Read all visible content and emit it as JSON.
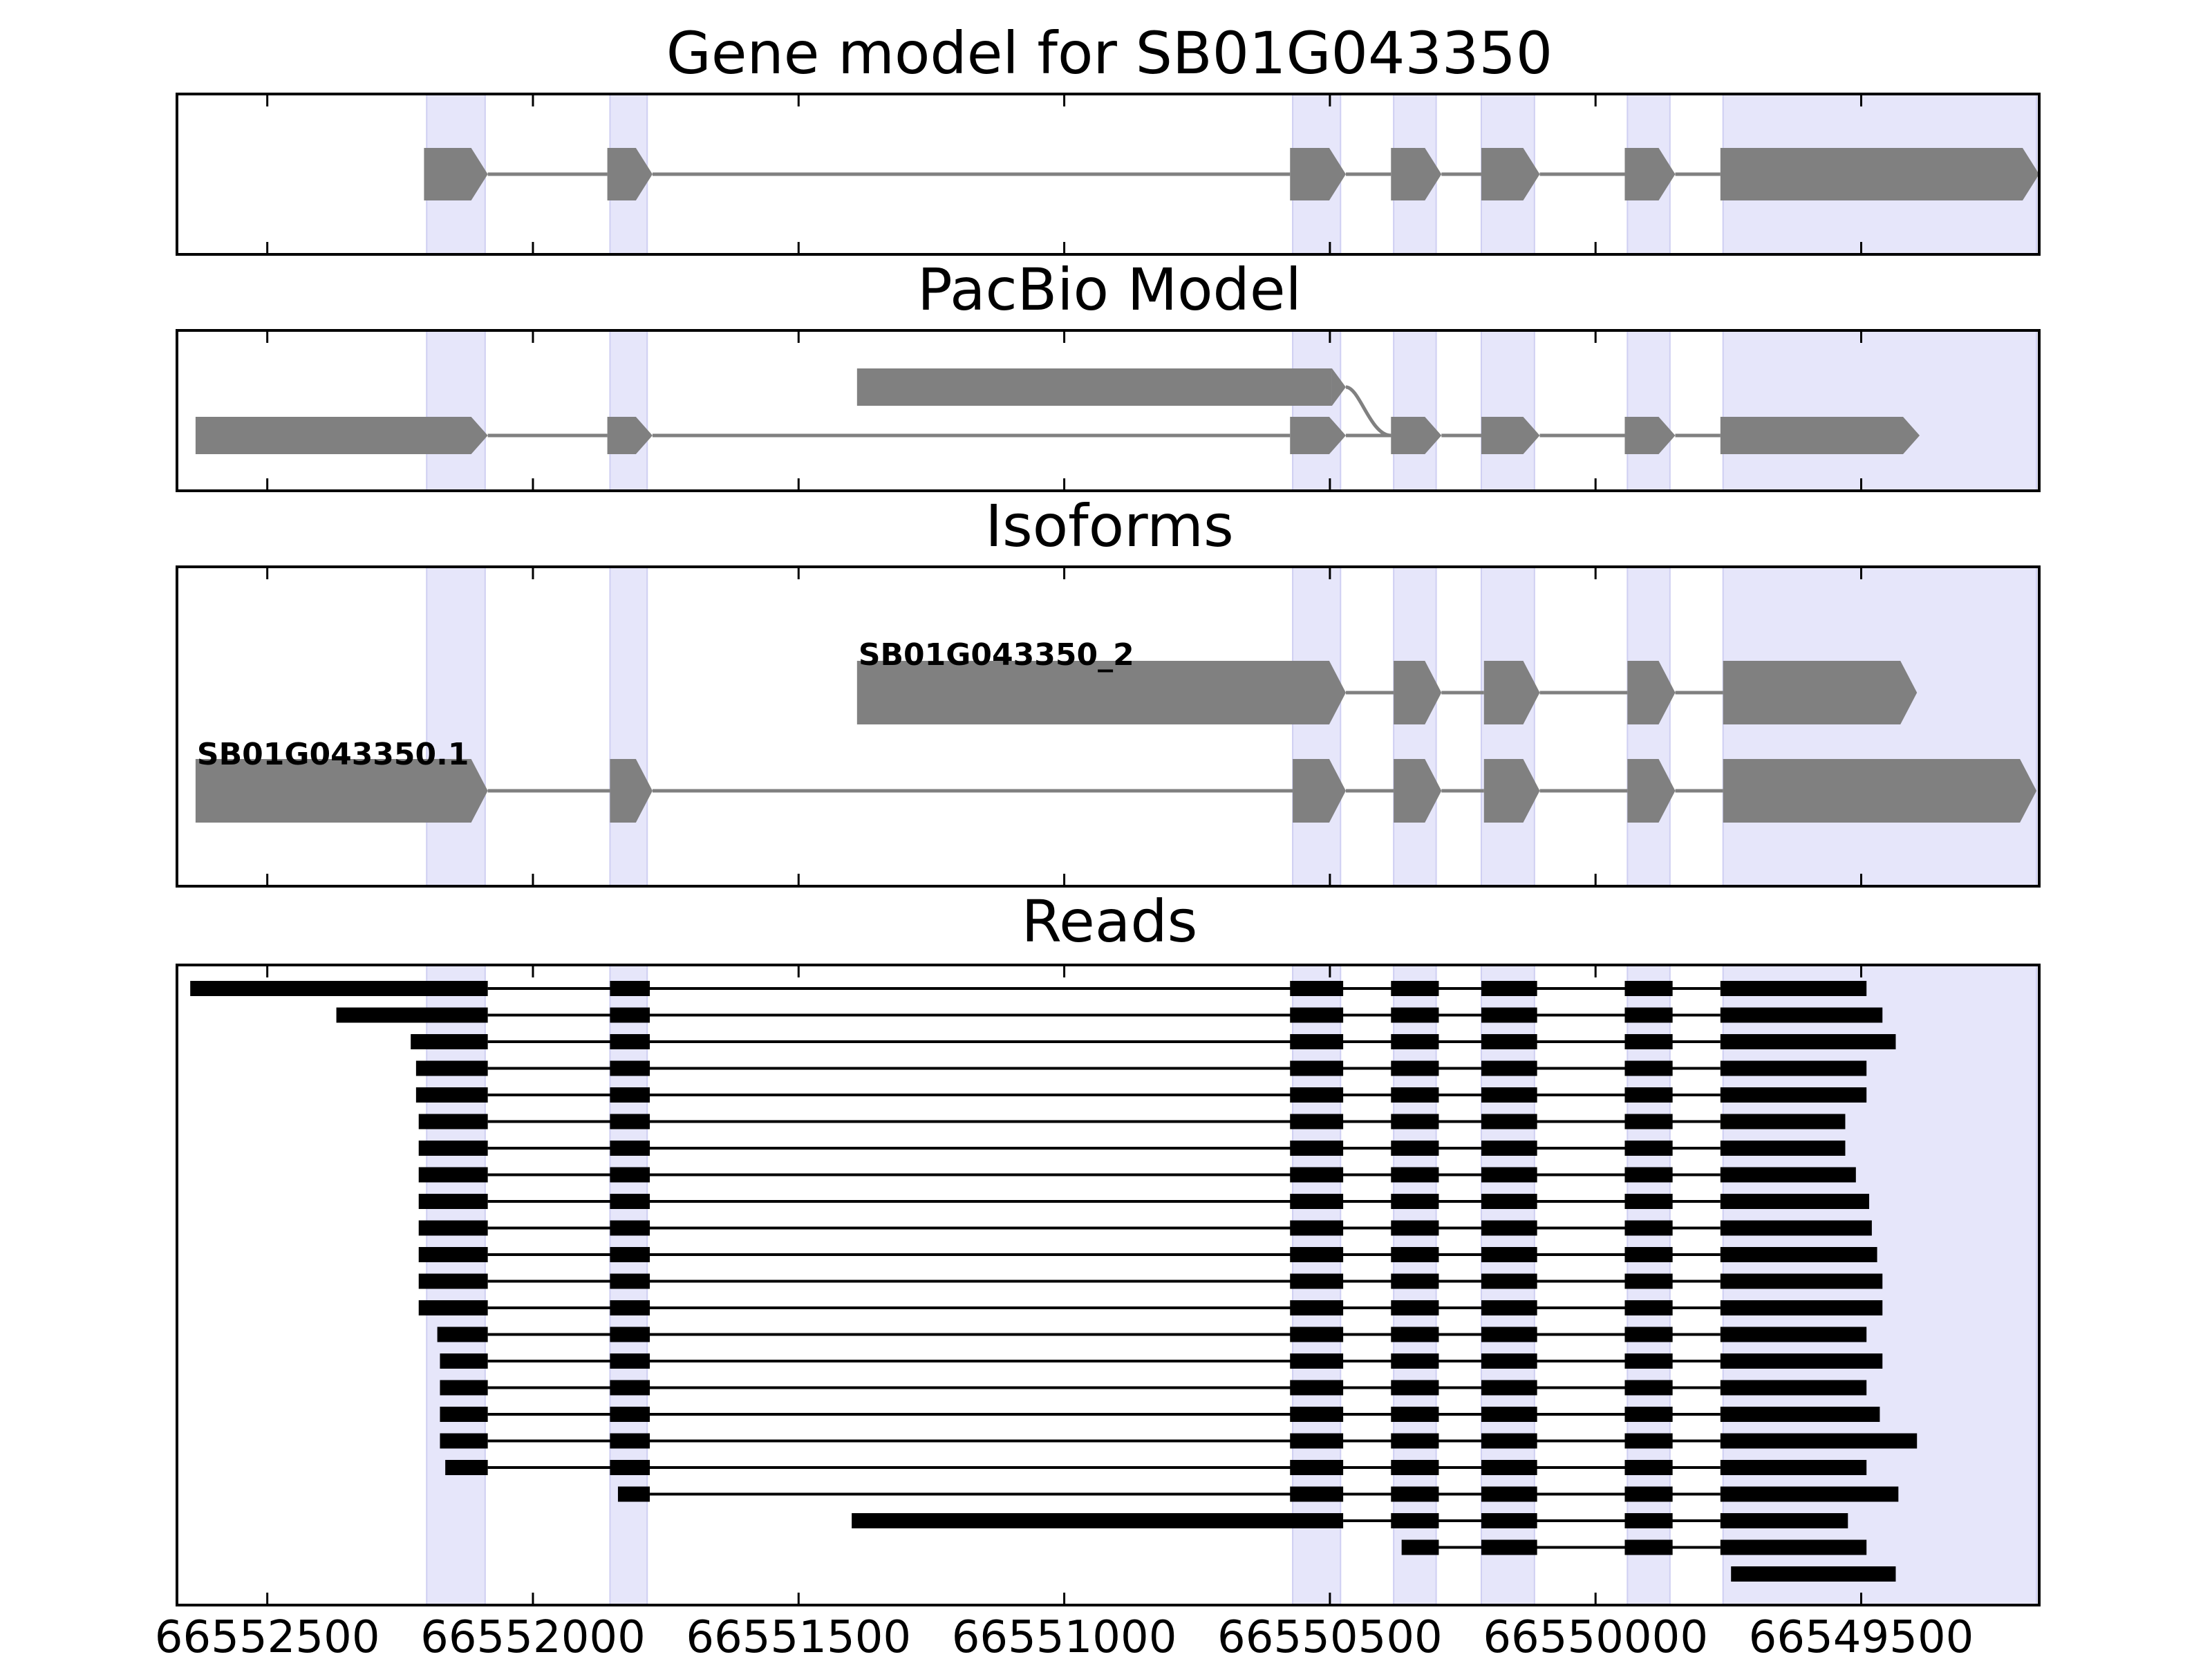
{
  "chart_data": {
    "type": "gene_model",
    "xlim": [
      66552670,
      66549165
    ],
    "x_direction": "reversed",
    "xticks": [
      66552500,
      66552000,
      66551500,
      66551000,
      66550500,
      66550000,
      66549500
    ],
    "xtick_labels": [
      "66552500",
      "66552000",
      "66551500",
      "66551000",
      "66550500",
      "66550000",
      "66549500"
    ],
    "colors": {
      "feature": "#808080",
      "read": "#000000",
      "highlight": "#e6e6fa"
    },
    "highlight_regions": [
      [
        66552200,
        66552090
      ],
      [
        66551855,
        66551785
      ],
      [
        66550570,
        66550480
      ],
      [
        66550380,
        66550300
      ],
      [
        66550215,
        66550115
      ],
      [
        66549940,
        66549860
      ],
      [
        66549760,
        66549170
      ]
    ],
    "panels": [
      {
        "title": "Gene model for SB01G043350",
        "tracks": [
          {
            "label": "",
            "exons": [
              [
                66552205,
                66552085
              ],
              [
                66551860,
                66551775
              ],
              [
                66550575,
                66550470
              ],
              [
                66550385,
                66550290
              ],
              [
                66550215,
                66550105
              ],
              [
                66549945,
                66549850
              ],
              [
                66549765,
                66549165
              ]
            ]
          }
        ]
      },
      {
        "title": "PacBio Model",
        "tracks": [
          {
            "label": "",
            "exons": [
              [
                66551390,
                66550470
              ],
              [
                66550385,
                66550290
              ],
              [
                66550215,
                66550105
              ],
              [
                66549945,
                66549850
              ],
              [
                66549765,
                66549390
              ]
            ]
          },
          {
            "label": "",
            "exons": [
              [
                66552635,
                66552085
              ],
              [
                66551860,
                66551775
              ],
              [
                66550575,
                66550470
              ],
              [
                66550385,
                66550290
              ],
              [
                66550215,
                66550105
              ],
              [
                66549945,
                66549850
              ],
              [
                66549765,
                66549390
              ]
            ]
          }
        ]
      },
      {
        "title": "Isoforms",
        "tracks": [
          {
            "label": "SB01G043350_2",
            "exons": [
              [
                66551390,
                66550470
              ],
              [
                66550380,
                66550290
              ],
              [
                66550210,
                66550105
              ],
              [
                66549940,
                66549850
              ],
              [
                66549760,
                66549395
              ]
            ]
          },
          {
            "label": "SB01G043350.1",
            "exons": [
              [
                66552635,
                66552085
              ],
              [
                66551855,
                66551775
              ],
              [
                66550570,
                66550470
              ],
              [
                66550380,
                66550290
              ],
              [
                66550210,
                66550105
              ],
              [
                66549940,
                66549850
              ],
              [
                66549760,
                66549170
              ]
            ]
          }
        ]
      },
      {
        "title": "Reads",
        "reads": [
          [
            [
              66552645,
              66552085
            ],
            [
              66551855,
              66551780
            ],
            [
              66550575,
              66550475
            ],
            [
              66550385,
              66550295
            ],
            [
              66550215,
              66550110
            ],
            [
              66549945,
              66549855
            ],
            [
              66549765,
              66549490
            ]
          ],
          [
            [
              66552370,
              66552085
            ],
            [
              66551855,
              66551780
            ],
            [
              66550575,
              66550475
            ],
            [
              66550385,
              66550295
            ],
            [
              66550215,
              66550110
            ],
            [
              66549945,
              66549855
            ],
            [
              66549765,
              66549460
            ]
          ],
          [
            [
              66552230,
              66552085
            ],
            [
              66551855,
              66551780
            ],
            [
              66550575,
              66550475
            ],
            [
              66550385,
              66550295
            ],
            [
              66550215,
              66550110
            ],
            [
              66549945,
              66549855
            ],
            [
              66549765,
              66549435
            ]
          ],
          [
            [
              66552220,
              66552085
            ],
            [
              66551855,
              66551780
            ],
            [
              66550575,
              66550475
            ],
            [
              66550385,
              66550295
            ],
            [
              66550215,
              66550110
            ],
            [
              66549945,
              66549855
            ],
            [
              66549765,
              66549490
            ]
          ],
          [
            [
              66552220,
              66552085
            ],
            [
              66551855,
              66551780
            ],
            [
              66550575,
              66550475
            ],
            [
              66550385,
              66550295
            ],
            [
              66550215,
              66550110
            ],
            [
              66549945,
              66549855
            ],
            [
              66549765,
              66549490
            ]
          ],
          [
            [
              66552215,
              66552085
            ],
            [
              66551855,
              66551780
            ],
            [
              66550575,
              66550475
            ],
            [
              66550385,
              66550295
            ],
            [
              66550215,
              66550110
            ],
            [
              66549945,
              66549855
            ],
            [
              66549765,
              66549530
            ]
          ],
          [
            [
              66552215,
              66552085
            ],
            [
              66551855,
              66551780
            ],
            [
              66550575,
              66550475
            ],
            [
              66550385,
              66550295
            ],
            [
              66550215,
              66550110
            ],
            [
              66549945,
              66549855
            ],
            [
              66549765,
              66549530
            ]
          ],
          [
            [
              66552215,
              66552085
            ],
            [
              66551855,
              66551780
            ],
            [
              66550575,
              66550475
            ],
            [
              66550385,
              66550295
            ],
            [
              66550215,
              66550110
            ],
            [
              66549945,
              66549855
            ],
            [
              66549765,
              66549510
            ]
          ],
          [
            [
              66552215,
              66552085
            ],
            [
              66551855,
              66551780
            ],
            [
              66550575,
              66550475
            ],
            [
              66550385,
              66550295
            ],
            [
              66550215,
              66550110
            ],
            [
              66549945,
              66549855
            ],
            [
              66549765,
              66549485
            ]
          ],
          [
            [
              66552215,
              66552085
            ],
            [
              66551855,
              66551780
            ],
            [
              66550575,
              66550475
            ],
            [
              66550385,
              66550295
            ],
            [
              66550215,
              66550110
            ],
            [
              66549945,
              66549855
            ],
            [
              66549765,
              66549480
            ]
          ],
          [
            [
              66552215,
              66552085
            ],
            [
              66551855,
              66551780
            ],
            [
              66550575,
              66550475
            ],
            [
              66550385,
              66550295
            ],
            [
              66550215,
              66550110
            ],
            [
              66549945,
              66549855
            ],
            [
              66549765,
              66549470
            ]
          ],
          [
            [
              66552215,
              66552085
            ],
            [
              66551855,
              66551780
            ],
            [
              66550575,
              66550475
            ],
            [
              66550385,
              66550295
            ],
            [
              66550215,
              66550110
            ],
            [
              66549945,
              66549855
            ],
            [
              66549765,
              66549460
            ]
          ],
          [
            [
              66552215,
              66552085
            ],
            [
              66551855,
              66551780
            ],
            [
              66550575,
              66550475
            ],
            [
              66550385,
              66550295
            ],
            [
              66550215,
              66550110
            ],
            [
              66549945,
              66549855
            ],
            [
              66549765,
              66549460
            ]
          ],
          [
            [
              66552180,
              66552085
            ],
            [
              66551855,
              66551780
            ],
            [
              66550575,
              66550475
            ],
            [
              66550385,
              66550295
            ],
            [
              66550215,
              66550110
            ],
            [
              66549945,
              66549855
            ],
            [
              66549765,
              66549490
            ]
          ],
          [
            [
              66552175,
              66552085
            ],
            [
              66551855,
              66551780
            ],
            [
              66550575,
              66550475
            ],
            [
              66550385,
              66550295
            ],
            [
              66550215,
              66550110
            ],
            [
              66549945,
              66549855
            ],
            [
              66549765,
              66549460
            ]
          ],
          [
            [
              66552175,
              66552085
            ],
            [
              66551855,
              66551780
            ],
            [
              66550575,
              66550475
            ],
            [
              66550385,
              66550295
            ],
            [
              66550215,
              66550110
            ],
            [
              66549945,
              66549855
            ],
            [
              66549765,
              66549490
            ]
          ],
          [
            [
              66552175,
              66552085
            ],
            [
              66551855,
              66551780
            ],
            [
              66550575,
              66550475
            ],
            [
              66550385,
              66550295
            ],
            [
              66550215,
              66550110
            ],
            [
              66549945,
              66549855
            ],
            [
              66549765,
              66549465
            ]
          ],
          [
            [
              66552175,
              66552085
            ],
            [
              66551855,
              66551780
            ],
            [
              66550575,
              66550475
            ],
            [
              66550385,
              66550295
            ],
            [
              66550215,
              66550110
            ],
            [
              66549945,
              66549855
            ],
            [
              66549765,
              66549395
            ]
          ],
          [
            [
              66552165,
              66552085
            ],
            [
              66551855,
              66551780
            ],
            [
              66550575,
              66550475
            ],
            [
              66550385,
              66550295
            ],
            [
              66550215,
              66550110
            ],
            [
              66549945,
              66549855
            ],
            [
              66549765,
              66549490
            ]
          ],
          [
            [
              66551840,
              66551780
            ],
            [
              66550575,
              66550475
            ],
            [
              66550385,
              66550295
            ],
            [
              66550215,
              66550110
            ],
            [
              66549945,
              66549855
            ],
            [
              66549765,
              66549430
            ]
          ],
          [
            [
              66551400,
              66550475
            ],
            [
              66550385,
              66550295
            ],
            [
              66550215,
              66550110
            ],
            [
              66549945,
              66549855
            ],
            [
              66549765,
              66549525
            ]
          ],
          [
            [
              66550365,
              66550295
            ],
            [
              66550215,
              66550110
            ],
            [
              66549945,
              66549855
            ],
            [
              66549765,
              66549490
            ]
          ],
          [
            [
              66549745,
              66549435
            ]
          ]
        ]
      }
    ]
  }
}
